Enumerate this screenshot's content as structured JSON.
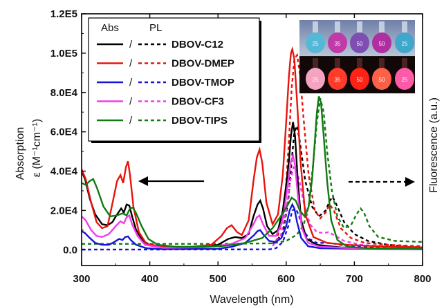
{
  "chart_data": {
    "type": "line",
    "title": "",
    "xlabel": "Wavelength (nm)",
    "ylabel_line1": "Absorption",
    "ylabel_line2": "ε (M⁻¹cm⁻¹)",
    "ylabel_right": "Fluorescence (a.u.)",
    "xlim": [
      300,
      800
    ],
    "ylim": [
      -8000,
      120000
    ],
    "x_ticks": [
      300,
      400,
      500,
      600,
      700,
      800
    ],
    "x_tick_labels": [
      "300",
      "400",
      "500",
      "600",
      "700",
      "800"
    ],
    "y_ticks": [
      0,
      20000,
      40000,
      60000,
      80000,
      100000,
      120000
    ],
    "y_tick_labels": [
      "0.0",
      "2.0E4",
      "4.0E4",
      "6.0E4",
      "8.0E4",
      "1.0E5",
      "1.2E5"
    ],
    "grid": false,
    "legend_position": "top-left",
    "legend_header_abs": "Abs",
    "legend_header_pl": "PL",
    "legend_separator": "/",
    "arrow_left": "absorption axis (left)",
    "arrow_right": "fluorescence axis (right)",
    "inset": {
      "top_labels": [
        "25",
        "35",
        "50",
        "50",
        "25"
      ],
      "bottom_labels": [
        "25",
        "35",
        "50",
        "50",
        "25"
      ]
    },
    "series": [
      {
        "name": "DBOV-C12",
        "color": "#000000",
        "abs": [
          [
            300,
            40000
          ],
          [
            305,
            36000
          ],
          [
            312,
            26000
          ],
          [
            320,
            18000
          ],
          [
            330,
            13000
          ],
          [
            338,
            12500
          ],
          [
            345,
            14000
          ],
          [
            352,
            18000
          ],
          [
            358,
            21000
          ],
          [
            362,
            19000
          ],
          [
            366,
            23000
          ],
          [
            370,
            22500
          ],
          [
            374,
            17000
          ],
          [
            380,
            10000
          ],
          [
            390,
            4500
          ],
          [
            400,
            2500
          ],
          [
            420,
            1500
          ],
          [
            450,
            1200
          ],
          [
            480,
            1500
          ],
          [
            500,
            2500
          ],
          [
            515,
            5500
          ],
          [
            525,
            6500
          ],
          [
            535,
            6000
          ],
          [
            545,
            8000
          ],
          [
            552,
            17000
          ],
          [
            558,
            23000
          ],
          [
            562,
            25000
          ],
          [
            566,
            21000
          ],
          [
            572,
            12000
          ],
          [
            580,
            8000
          ],
          [
            588,
            10000
          ],
          [
            595,
            20000
          ],
          [
            600,
            33000
          ],
          [
            604,
            45000
          ],
          [
            607,
            58000
          ],
          [
            610,
            65000
          ],
          [
            613,
            58000
          ],
          [
            617,
            35000
          ],
          [
            622,
            15000
          ],
          [
            630,
            5500
          ],
          [
            645,
            2500
          ],
          [
            680,
            1200
          ],
          [
            720,
            800
          ],
          [
            800,
            500
          ]
        ],
        "pl": [
          [
            580,
            3000
          ],
          [
            595,
            8000
          ],
          [
            603,
            25000
          ],
          [
            608,
            45000
          ],
          [
            612,
            60000
          ],
          [
            616,
            63000
          ],
          [
            620,
            55000
          ],
          [
            628,
            35000
          ],
          [
            638,
            22000
          ],
          [
            648,
            17000
          ],
          [
            658,
            20000
          ],
          [
            664,
            25000
          ],
          [
            668,
            27000
          ],
          [
            675,
            22000
          ],
          [
            685,
            14000
          ],
          [
            700,
            8000
          ],
          [
            720,
            4500
          ],
          [
            750,
            2500
          ],
          [
            780,
            1500
          ],
          [
            800,
            1200
          ]
        ]
      },
      {
        "name": "DBOV-DMEP",
        "color": "#e8140c",
        "abs": [
          [
            300,
            41000
          ],
          [
            306,
            36000
          ],
          [
            314,
            24000
          ],
          [
            322,
            14000
          ],
          [
            330,
            11000
          ],
          [
            338,
            12000
          ],
          [
            346,
            25000
          ],
          [
            352,
            35000
          ],
          [
            357,
            38000
          ],
          [
            361,
            34000
          ],
          [
            365,
            42000
          ],
          [
            368,
            45000
          ],
          [
            371,
            38000
          ],
          [
            376,
            22000
          ],
          [
            384,
            9000
          ],
          [
            395,
            3000
          ],
          [
            420,
            1500
          ],
          [
            460,
            1500
          ],
          [
            490,
            2500
          ],
          [
            505,
            7000
          ],
          [
            513,
            11000
          ],
          [
            520,
            12500
          ],
          [
            528,
            9000
          ],
          [
            535,
            7500
          ],
          [
            545,
            15000
          ],
          [
            552,
            35000
          ],
          [
            557,
            47000
          ],
          [
            561,
            51000
          ],
          [
            565,
            44000
          ],
          [
            571,
            24000
          ],
          [
            580,
            13000
          ],
          [
            588,
            18000
          ],
          [
            595,
            38000
          ],
          [
            600,
            65000
          ],
          [
            604,
            88000
          ],
          [
            607,
            100000
          ],
          [
            609,
            102000
          ],
          [
            612,
            97000
          ],
          [
            616,
            75000
          ],
          [
            621,
            45000
          ],
          [
            628,
            18000
          ],
          [
            640,
            6500
          ],
          [
            660,
            3500
          ],
          [
            690,
            2500
          ],
          [
            720,
            2000
          ],
          [
            800,
            1200
          ]
        ],
        "pl": [
          [
            585,
            4000
          ],
          [
            597,
            18000
          ],
          [
            604,
            55000
          ],
          [
            608,
            82000
          ],
          [
            612,
            97000
          ],
          [
            616,
            99000
          ],
          [
            620,
            90000
          ],
          [
            626,
            65000
          ],
          [
            633,
            38000
          ],
          [
            642,
            20000
          ],
          [
            650,
            16000
          ],
          [
            658,
            19000
          ],
          [
            664,
            23000
          ],
          [
            670,
            20000
          ],
          [
            680,
            11000
          ],
          [
            695,
            6000
          ],
          [
            715,
            3500
          ],
          [
            750,
            2500
          ],
          [
            800,
            1800
          ]
        ]
      },
      {
        "name": "DBOV-TMOP",
        "color": "#1515d8",
        "abs": [
          [
            300,
            9500
          ],
          [
            305,
            8500
          ],
          [
            312,
            6000
          ],
          [
            320,
            3500
          ],
          [
            330,
            2500
          ],
          [
            340,
            2500
          ],
          [
            348,
            4000
          ],
          [
            355,
            5500
          ],
          [
            360,
            5000
          ],
          [
            364,
            6500
          ],
          [
            368,
            6800
          ],
          [
            372,
            5000
          ],
          [
            380,
            2500
          ],
          [
            395,
            800
          ],
          [
            420,
            300
          ],
          [
            500,
            500
          ],
          [
            520,
            1500
          ],
          [
            540,
            3500
          ],
          [
            553,
            7500
          ],
          [
            558,
            9500
          ],
          [
            562,
            10000
          ],
          [
            566,
            8000
          ],
          [
            575,
            4500
          ],
          [
            585,
            4000
          ],
          [
            593,
            6000
          ],
          [
            600,
            12000
          ],
          [
            605,
            20000
          ],
          [
            609,
            23000
          ],
          [
            612,
            21000
          ],
          [
            616,
            14000
          ],
          [
            622,
            6000
          ],
          [
            632,
            1800
          ],
          [
            650,
            800
          ],
          [
            700,
            500
          ],
          [
            800,
            300
          ]
        ],
        "pl": [
          [
            300,
            100
          ],
          [
            575,
            200
          ],
          [
            585,
            800
          ],
          [
            595,
            4000
          ],
          [
            603,
            12000
          ],
          [
            609,
            20000
          ],
          [
            614,
            21000
          ],
          [
            619,
            17000
          ],
          [
            626,
            9500
          ],
          [
            634,
            5500
          ],
          [
            645,
            3500
          ],
          [
            660,
            3500
          ],
          [
            668,
            3300
          ],
          [
            680,
            2500
          ],
          [
            700,
            1500
          ],
          [
            750,
            800
          ],
          [
            800,
            400
          ]
        ]
      },
      {
        "name": "DBOV-CF3",
        "color": "#ee3cee",
        "abs": [
          [
            300,
            17000
          ],
          [
            306,
            15000
          ],
          [
            314,
            10000
          ],
          [
            322,
            7000
          ],
          [
            330,
            6500
          ],
          [
            340,
            8000
          ],
          [
            350,
            12000
          ],
          [
            357,
            14500
          ],
          [
            362,
            13500
          ],
          [
            366,
            16500
          ],
          [
            370,
            17500
          ],
          [
            374,
            13000
          ],
          [
            382,
            7000
          ],
          [
            393,
            2500
          ],
          [
            420,
            1000
          ],
          [
            470,
            1200
          ],
          [
            500,
            2000
          ],
          [
            520,
            3000
          ],
          [
            540,
            6000
          ],
          [
            552,
            13000
          ],
          [
            557,
            16500
          ],
          [
            561,
            17500
          ],
          [
            566,
            13000
          ],
          [
            575,
            7000
          ],
          [
            585,
            7000
          ],
          [
            593,
            13000
          ],
          [
            598,
            22000
          ],
          [
            603,
            35000
          ],
          [
            607,
            45000
          ],
          [
            610,
            48000
          ],
          [
            613,
            43000
          ],
          [
            617,
            28000
          ],
          [
            623,
            11000
          ],
          [
            632,
            3500
          ],
          [
            650,
            1500
          ],
          [
            700,
            800
          ],
          [
            800,
            500
          ]
        ],
        "pl": [
          [
            580,
            2000
          ],
          [
            592,
            7000
          ],
          [
            600,
            20000
          ],
          [
            606,
            35000
          ],
          [
            611,
            42000
          ],
          [
            615,
            41000
          ],
          [
            620,
            34000
          ],
          [
            627,
            22000
          ],
          [
            635,
            13000
          ],
          [
            645,
            9000
          ],
          [
            655,
            8500
          ],
          [
            662,
            9000
          ],
          [
            670,
            7500
          ],
          [
            685,
            4500
          ],
          [
            710,
            2500
          ],
          [
            750,
            1500
          ],
          [
            800,
            1200
          ]
        ]
      },
      {
        "name": "DBOV-TIPS",
        "color": "#117a11",
        "abs": [
          [
            300,
            34000
          ],
          [
            306,
            33000
          ],
          [
            312,
            35000
          ],
          [
            317,
            36000
          ],
          [
            323,
            31000
          ],
          [
            332,
            22000
          ],
          [
            342,
            17000
          ],
          [
            352,
            17500
          ],
          [
            360,
            18500
          ],
          [
            366,
            17500
          ],
          [
            371,
            21000
          ],
          [
            375,
            21500
          ],
          [
            380,
            18500
          ],
          [
            388,
            12000
          ],
          [
            398,
            5500
          ],
          [
            412,
            2500
          ],
          [
            440,
            1500
          ],
          [
            480,
            1500
          ],
          [
            510,
            2000
          ],
          [
            540,
            3500
          ],
          [
            565,
            6000
          ],
          [
            580,
            11000
          ],
          [
            592,
            17000
          ],
          [
            601,
            22000
          ],
          [
            608,
            26500
          ],
          [
            614,
            25000
          ],
          [
            620,
            20000
          ],
          [
            627,
            17000
          ],
          [
            633,
            22000
          ],
          [
            638,
            36000
          ],
          [
            642,
            55000
          ],
          [
            645,
            70000
          ],
          [
            648,
            78000
          ],
          [
            651,
            75000
          ],
          [
            655,
            58000
          ],
          [
            660,
            35000
          ],
          [
            666,
            15000
          ],
          [
            675,
            5000
          ],
          [
            690,
            1500
          ],
          [
            720,
            800
          ],
          [
            800,
            500
          ]
        ],
        "pl": [
          [
            300,
            3000
          ],
          [
            400,
            3000
          ],
          [
            500,
            3000
          ],
          [
            580,
            3300
          ],
          [
            600,
            4500
          ],
          [
            615,
            7500
          ],
          [
            625,
            12000
          ],
          [
            633,
            22000
          ],
          [
            640,
            45000
          ],
          [
            645,
            65000
          ],
          [
            650,
            77000
          ],
          [
            655,
            70000
          ],
          [
            660,
            50000
          ],
          [
            667,
            30000
          ],
          [
            675,
            17000
          ],
          [
            685,
            11000
          ],
          [
            695,
            12500
          ],
          [
            703,
            18000
          ],
          [
            709,
            21000
          ],
          [
            714,
            19000
          ],
          [
            722,
            12000
          ],
          [
            735,
            6500
          ],
          [
            760,
            4500
          ],
          [
            800,
            4000
          ]
        ]
      }
    ]
  }
}
